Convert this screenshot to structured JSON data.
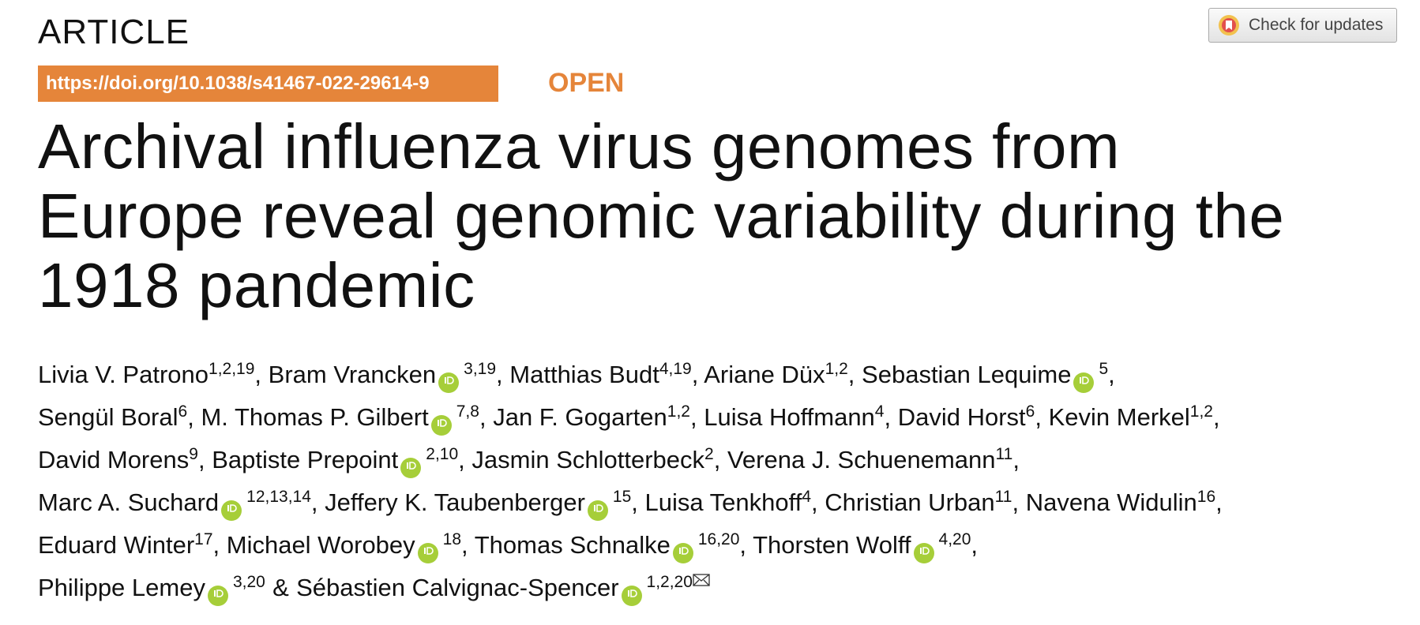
{
  "header": {
    "section": "ARTICLE",
    "doi": "https://doi.org/10.1038/s41467-022-29614-9",
    "access": "OPEN",
    "update_button": "Check for updates"
  },
  "title": "Archival influenza virus genomes from Europe reveal genomic variability during the 1918 pandemic",
  "author_lines": [
    [
      {
        "name": "Livia V. Patrono",
        "affiliations": "1,2,19",
        "orcid": false,
        "separator": ","
      },
      {
        "name": "Bram Vrancken",
        "affiliations": "3,19",
        "orcid": true,
        "separator": ","
      },
      {
        "name": "Matthias Budt",
        "affiliations": "4,19",
        "orcid": false,
        "separator": ","
      },
      {
        "name": "Ariane Düx",
        "affiliations": "1,2",
        "orcid": false,
        "separator": ","
      },
      {
        "name": "Sebastian Lequime",
        "affiliations": "5",
        "orcid": true,
        "separator": ","
      }
    ],
    [
      {
        "name": "Sengül Boral",
        "affiliations": "6",
        "orcid": false,
        "separator": ","
      },
      {
        "name": "M. Thomas P. Gilbert",
        "affiliations": "7,8",
        "orcid": true,
        "separator": ","
      },
      {
        "name": "Jan F. Gogarten",
        "affiliations": "1,2",
        "orcid": false,
        "separator": ","
      },
      {
        "name": "Luisa Hoffmann",
        "affiliations": "4",
        "orcid": false,
        "separator": ","
      },
      {
        "name": "David Horst",
        "affiliations": "6",
        "orcid": false,
        "separator": ","
      },
      {
        "name": "Kevin Merkel",
        "affiliations": "1,2",
        "orcid": false,
        "separator": ","
      }
    ],
    [
      {
        "name": "David Morens",
        "affiliations": "9",
        "orcid": false,
        "separator": ","
      },
      {
        "name": "Baptiste Prepoint",
        "affiliations": "2,10",
        "orcid": true,
        "separator": ","
      },
      {
        "name": "Jasmin Schlotterbeck",
        "affiliations": "2",
        "orcid": false,
        "separator": ","
      },
      {
        "name": "Verena J. Schuenemann",
        "affiliations": "11",
        "orcid": false,
        "separator": ","
      }
    ],
    [
      {
        "name": "Marc A. Suchard",
        "affiliations": "12,13,14",
        "orcid": true,
        "separator": ","
      },
      {
        "name": "Jeffery K. Taubenberger",
        "affiliations": "15",
        "orcid": true,
        "separator": ","
      },
      {
        "name": "Luisa Tenkhoff",
        "affiliations": "4",
        "orcid": false,
        "separator": ","
      },
      {
        "name": "Christian Urban",
        "affiliations": "11",
        "orcid": false,
        "separator": ","
      },
      {
        "name": "Navena Widulin",
        "affiliations": "16",
        "orcid": false,
        "separator": ","
      }
    ],
    [
      {
        "name": "Eduard Winter",
        "affiliations": "17",
        "orcid": false,
        "separator": ","
      },
      {
        "name": "Michael Worobey",
        "affiliations": "18",
        "orcid": true,
        "separator": ","
      },
      {
        "name": "Thomas Schnalke",
        "affiliations": "16,20",
        "orcid": true,
        "separator": ","
      },
      {
        "name": "Thorsten Wolff",
        "affiliations": "4,20",
        "orcid": true,
        "separator": ","
      }
    ],
    [
      {
        "name": "Philippe Lemey",
        "affiliations": "3,20",
        "orcid": true,
        "separator": "&"
      },
      {
        "name": "Sébastien Calvignac-Spencer",
        "affiliations": "1,2,20",
        "orcid": true,
        "corresponding": true
      }
    ]
  ]
}
